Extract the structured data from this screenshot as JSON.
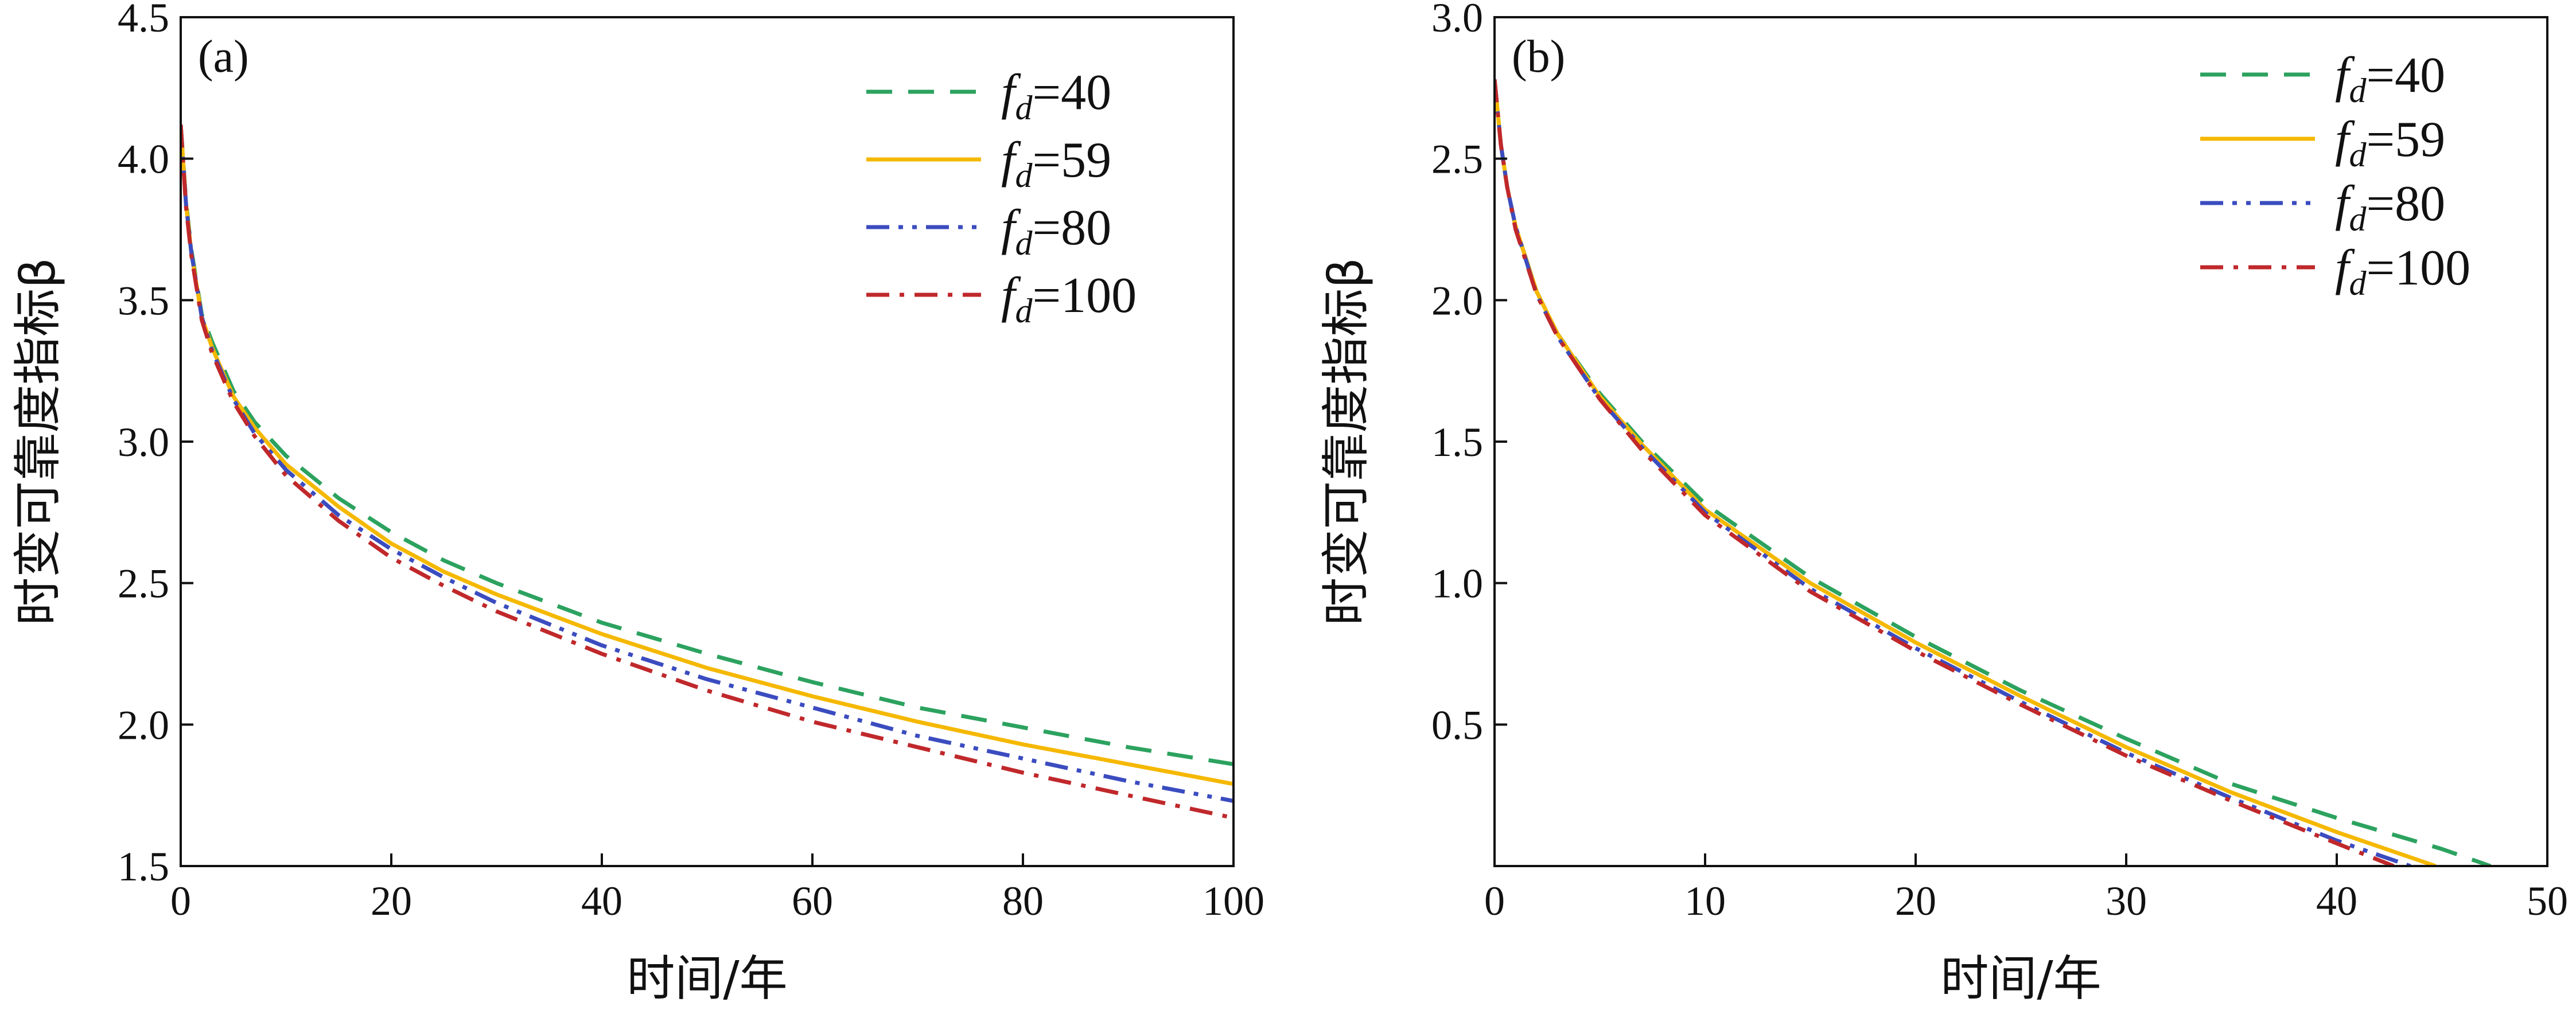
{
  "chart_data": [
    {
      "type": "line",
      "panel_label": "(a)",
      "xlabel": "时间/年",
      "ylabel": "时变可靠度指标β",
      "xlim": [
        0,
        100
      ],
      "ylim": [
        1.5,
        4.5
      ],
      "xticks": [
        0,
        20,
        40,
        60,
        80,
        100
      ],
      "yticks": [
        1.5,
        2.0,
        2.5,
        3.0,
        3.5,
        4.0,
        4.5
      ],
      "xtick_labels": [
        "0",
        "20",
        "40",
        "60",
        "80",
        "100"
      ],
      "ytick_labels": [
        "1.5",
        "2.0",
        "2.5",
        "3.0",
        "3.5",
        "4.0",
        "4.5"
      ],
      "grid": false,
      "legend_position": "top-right",
      "series": [
        {
          "name": "f_d=40",
          "legend_var": "f",
          "legend_sub": "d",
          "legend_val": "=40",
          "color": "#2ca25f",
          "dash": "dashed",
          "x": [
            0,
            0.5,
            1,
            2,
            3,
            5,
            7,
            10,
            15,
            20,
            25,
            30,
            40,
            50,
            60,
            70,
            80,
            90,
            100
          ],
          "y": [
            4.12,
            3.85,
            3.68,
            3.45,
            3.35,
            3.18,
            3.07,
            2.95,
            2.8,
            2.68,
            2.58,
            2.5,
            2.36,
            2.25,
            2.15,
            2.06,
            1.99,
            1.92,
            1.86
          ]
        },
        {
          "name": "f_d=59",
          "legend_var": "f",
          "legend_sub": "d",
          "legend_val": "=59",
          "color": "#f5b800",
          "dash": "solid",
          "x": [
            0,
            0.5,
            1,
            2,
            3,
            5,
            7,
            10,
            15,
            20,
            25,
            30,
            40,
            50,
            60,
            70,
            80,
            90,
            100
          ],
          "y": [
            4.12,
            3.84,
            3.67,
            3.44,
            3.33,
            3.16,
            3.05,
            2.92,
            2.77,
            2.64,
            2.54,
            2.46,
            2.32,
            2.2,
            2.1,
            2.01,
            1.93,
            1.86,
            1.79
          ]
        },
        {
          "name": "f_d=80",
          "legend_var": "f",
          "legend_sub": "d",
          "legend_val": "=80",
          "color": "#3b4cc0",
          "dash": "dashdotdot",
          "x": [
            0,
            0.5,
            1,
            2,
            3,
            5,
            7,
            10,
            15,
            20,
            25,
            30,
            40,
            50,
            60,
            70,
            80,
            90,
            100
          ],
          "y": [
            4.12,
            3.84,
            3.67,
            3.44,
            3.32,
            3.15,
            3.03,
            2.9,
            2.74,
            2.62,
            2.52,
            2.43,
            2.28,
            2.16,
            2.06,
            1.96,
            1.88,
            1.8,
            1.73
          ]
        },
        {
          "name": "f_d=100",
          "legend_var": "f",
          "legend_sub": "d",
          "legend_val": "=100",
          "color": "#c0282b",
          "dash": "dashdot",
          "x": [
            0,
            0.5,
            1,
            2,
            3,
            5,
            7,
            10,
            15,
            20,
            25,
            30,
            40,
            50,
            60,
            70,
            80,
            90,
            100
          ],
          "y": [
            4.12,
            3.83,
            3.66,
            3.43,
            3.31,
            3.14,
            3.02,
            2.88,
            2.72,
            2.59,
            2.49,
            2.4,
            2.25,
            2.12,
            2.01,
            1.92,
            1.83,
            1.75,
            1.67
          ]
        }
      ]
    },
    {
      "type": "line",
      "panel_label": "(b)",
      "xlabel": "时间/年",
      "ylabel": "时变可靠度指标β",
      "xlim": [
        0,
        50
      ],
      "ylim": [
        0,
        3.0
      ],
      "xticks": [
        0,
        10,
        20,
        30,
        40,
        50
      ],
      "yticks": [
        0.5,
        1.0,
        1.5,
        2.0,
        2.5,
        3.0
      ],
      "xtick_labels": [
        "0",
        "10",
        "20",
        "30",
        "40",
        "50"
      ],
      "ytick_labels": [
        "0.5",
        "1.0",
        "1.5",
        "2.0",
        "2.5",
        "3.0"
      ],
      "grid": false,
      "legend_position": "top-right",
      "series": [
        {
          "name": "f_d=40",
          "legend_var": "f",
          "legend_sub": "d",
          "legend_val": "=40",
          "color": "#2ca25f",
          "dash": "dashed",
          "x": [
            0,
            0.3,
            0.6,
            1,
            2,
            3,
            5,
            7,
            10,
            15,
            20,
            25,
            30,
            35,
            40,
            45,
            47.3
          ],
          "y": [
            2.78,
            2.55,
            2.4,
            2.26,
            2.03,
            1.88,
            1.67,
            1.5,
            1.28,
            1.02,
            0.81,
            0.62,
            0.45,
            0.29,
            0.17,
            0.06,
            0.0
          ]
        },
        {
          "name": "f_d=59",
          "legend_var": "f",
          "legend_sub": "d",
          "legend_val": "=59",
          "color": "#f5b800",
          "dash": "solid",
          "x": [
            0,
            0.3,
            0.6,
            1,
            2,
            3,
            5,
            7,
            10,
            15,
            20,
            25,
            30,
            35,
            40,
            44.7
          ],
          "y": [
            2.78,
            2.55,
            2.4,
            2.26,
            2.03,
            1.88,
            1.66,
            1.49,
            1.26,
            1.0,
            0.79,
            0.6,
            0.42,
            0.26,
            0.12,
            0.0
          ]
        },
        {
          "name": "f_d=80",
          "legend_var": "f",
          "legend_sub": "d",
          "legend_val": "=80",
          "color": "#3b4cc0",
          "dash": "dashdotdot",
          "x": [
            0,
            0.3,
            0.6,
            1,
            2,
            3,
            5,
            7,
            10,
            15,
            20,
            25,
            30,
            35,
            40,
            43.5
          ],
          "y": [
            2.78,
            2.55,
            2.4,
            2.26,
            2.02,
            1.87,
            1.65,
            1.48,
            1.25,
            0.98,
            0.77,
            0.58,
            0.4,
            0.24,
            0.09,
            0.0
          ]
        },
        {
          "name": "f_d=100",
          "legend_var": "f",
          "legend_sub": "d",
          "legend_val": "=100",
          "color": "#c0282b",
          "dash": "dashdot",
          "x": [
            0,
            0.3,
            0.6,
            1,
            2,
            3,
            5,
            7,
            10,
            15,
            20,
            25,
            30,
            35,
            40,
            42.7
          ],
          "y": [
            2.78,
            2.55,
            2.4,
            2.25,
            2.02,
            1.87,
            1.65,
            1.47,
            1.24,
            0.97,
            0.76,
            0.57,
            0.39,
            0.23,
            0.08,
            0.0
          ]
        }
      ]
    }
  ]
}
